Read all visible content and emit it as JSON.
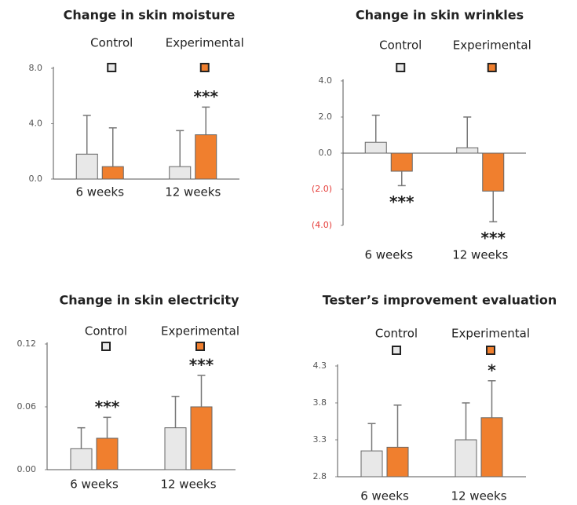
{
  "chart_data": [
    {
      "type": "bar",
      "title": "Change in skin moisture",
      "categories": [
        "6 weeks",
        "12 weeks"
      ],
      "series": [
        {
          "name": "Control",
          "color": "#e8e8e8",
          "values": [
            1.8,
            0.9
          ],
          "errors": [
            2.8,
            2.6
          ]
        },
        {
          "name": "Experimental",
          "color": "#f07f2e",
          "values": [
            0.9,
            3.2
          ],
          "errors": [
            2.8,
            2.0
          ],
          "significance": [
            null,
            "***"
          ]
        }
      ],
      "ylim": [
        0,
        8
      ],
      "yticks": [
        {
          "value": 0,
          "label": "0.0"
        },
        {
          "value": 4,
          "label": "4.0"
        },
        {
          "value": 8,
          "label": "8.0"
        }
      ]
    },
    {
      "type": "bar",
      "title": "Change in skin  wrinkles",
      "categories": [
        "6 weeks",
        "12 weeks"
      ],
      "series": [
        {
          "name": "Control",
          "color": "#e8e8e8",
          "values": [
            0.6,
            0.3
          ],
          "errors": [
            1.5,
            1.7
          ]
        },
        {
          "name": "Experimental",
          "color": "#f07f2e",
          "values": [
            -1.0,
            -2.1
          ],
          "errors": [
            0.8,
            1.7
          ],
          "significance": [
            "***",
            "***"
          ]
        }
      ],
      "ylim": [
        -4,
        4
      ],
      "negative_tick_color": "#e53935",
      "yticks": [
        {
          "value": -4,
          "label": "(4.0)"
        },
        {
          "value": -2,
          "label": "(2.0)"
        },
        {
          "value": 0,
          "label": "0.0"
        },
        {
          "value": 2,
          "label": "2.0"
        },
        {
          "value": 4,
          "label": "4.0"
        }
      ]
    },
    {
      "type": "bar",
      "title": "Change in skin electricity",
      "categories": [
        "6 weeks",
        "12 weeks"
      ],
      "series": [
        {
          "name": "Control",
          "color": "#e8e8e8",
          "values": [
            0.02,
            0.04
          ],
          "errors": [
            0.02,
            0.03
          ]
        },
        {
          "name": "Experimental",
          "color": "#f07f2e",
          "values": [
            0.03,
            0.06
          ],
          "errors": [
            0.02,
            0.03
          ],
          "significance": [
            "***",
            "***"
          ]
        }
      ],
      "ylim": [
        0,
        0.12
      ],
      "yticks": [
        {
          "value": 0,
          "label": "0.00"
        },
        {
          "value": 0.06,
          "label": "0.06"
        },
        {
          "value": 0.12,
          "label": "0.12"
        }
      ]
    },
    {
      "type": "bar",
      "title": "Tester’s improvement evaluation",
      "categories": [
        "6 weeks",
        "12 weeks"
      ],
      "series": [
        {
          "name": "Control",
          "color": "#e8e8e8",
          "values": [
            3.15,
            3.3
          ],
          "errors": [
            0.37,
            0.5
          ]
        },
        {
          "name": "Experimental",
          "color": "#f07f2e",
          "values": [
            3.2,
            3.6
          ],
          "errors": [
            0.57,
            0.5
          ],
          "significance": [
            null,
            "*"
          ]
        }
      ],
      "ylim": [
        2.8,
        4.3
      ],
      "yticks": [
        2.8,
        3.3,
        3.8,
        4.3
      ]
    }
  ]
}
